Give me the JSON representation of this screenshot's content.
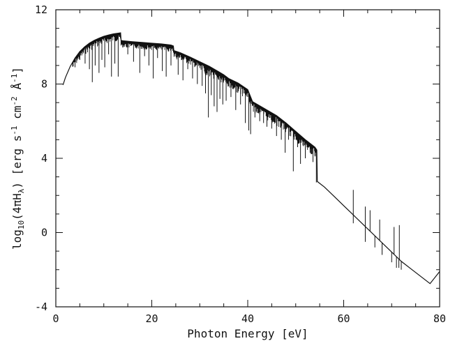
{
  "chart_data": {
    "type": "line",
    "xlabel": "Photon Energy [eV]",
    "ylabel": {
      "prefix": "log",
      "log_subscript": "10",
      "open": "(4πH",
      "h_subscript": "λ",
      "close": ") [erg s",
      "s_exp": "-1",
      "cm_text": " cm",
      "cm_exp": "-2",
      "ang_text": " Å",
      "ang_exp": "-1",
      "end": "]"
    },
    "xlim": [
      0,
      80
    ],
    "ylim": [
      -4,
      12
    ],
    "x_ticks": [
      "0",
      "20",
      "40",
      "60",
      "80"
    ],
    "y_ticks": [
      "-4",
      "0",
      "4",
      "8",
      "12"
    ],
    "color": "#111111",
    "grid": false,
    "continuum": {
      "x": [
        1.5,
        2.0,
        3.0,
        4.0,
        5.0,
        6.0,
        7.0,
        8.0,
        9.0,
        10.0,
        11.0,
        12.0,
        13.0,
        13.5,
        13.6,
        14,
        16,
        18,
        20,
        22,
        24,
        24.5,
        24.6,
        26,
        28,
        30,
        32,
        34,
        35,
        36,
        38,
        40,
        41,
        42,
        44,
        46,
        48,
        50,
        52,
        54,
        54.4,
        54.5,
        56,
        58,
        60,
        62,
        64,
        66,
        68,
        70,
        72,
        74,
        76,
        78,
        80
      ],
      "y": [
        7.95,
        8.35,
        8.95,
        9.4,
        9.75,
        10.0,
        10.2,
        10.35,
        10.47,
        10.57,
        10.64,
        10.7,
        10.74,
        10.76,
        10.35,
        10.33,
        10.28,
        10.24,
        10.2,
        10.16,
        10.1,
        10.05,
        9.8,
        9.68,
        9.45,
        9.2,
        8.95,
        8.65,
        8.5,
        8.3,
        8.05,
        7.7,
        7.05,
        6.9,
        6.6,
        6.3,
        5.9,
        5.45,
        5.0,
        4.6,
        4.45,
        2.75,
        2.45,
        1.95,
        1.45,
        0.95,
        0.45,
        -0.05,
        -0.55,
        -1.05,
        -1.55,
        -1.95,
        -2.35,
        -2.75,
        -2.1
      ]
    },
    "absorption_lines": {
      "x": [
        4.0,
        5.0,
        6.1,
        7.0,
        7.6,
        8.2,
        9.0,
        9.6,
        10.2,
        11.0,
        11.6,
        12.3,
        13.0,
        15.0,
        16.2,
        17.5,
        18.5,
        19.4,
        20.3,
        21.2,
        22.2,
        23.0,
        24.0,
        25.5,
        26.5,
        27.5,
        28.5,
        29.5,
        30.5,
        31.2,
        31.8,
        32.4,
        33.0,
        33.6,
        34.2,
        34.8,
        35.5,
        36.5,
        37.5,
        38.5,
        39.5,
        40.2,
        40.6,
        41.5,
        42.5,
        43.3,
        44.0,
        45.0,
        46.0,
        47.0,
        47.8,
        48.5,
        49.5,
        50.4,
        51.0,
        52.0,
        53.0,
        53.6,
        54.0,
        54.3,
        62.0,
        64.5,
        66.5,
        68.0,
        70.0,
        71.0,
        71.5,
        72.0
      ],
      "y": [
        8.9,
        9.3,
        9.1,
        8.8,
        8.1,
        9.0,
        8.6,
        9.3,
        8.9,
        9.6,
        8.4,
        9.1,
        8.4,
        9.6,
        9.2,
        8.6,
        9.5,
        9.0,
        8.3,
        9.4,
        8.7,
        8.4,
        9.0,
        8.5,
        8.2,
        8.8,
        8.3,
        8.0,
        7.9,
        7.5,
        6.2,
        7.4,
        6.8,
        6.5,
        7.2,
        6.9,
        7.1,
        7.3,
        6.6,
        6.9,
        5.9,
        5.5,
        5.3,
        6.2,
        6.0,
        5.9,
        5.7,
        5.6,
        5.2,
        5.0,
        4.3,
        5.0,
        3.3,
        4.6,
        3.7,
        4.0,
        4.3,
        3.8,
        4.1,
        2.7,
        0.5,
        -0.5,
        -0.8,
        -1.2,
        -1.6,
        -1.9,
        -1.9,
        -2.0
      ]
    },
    "emission_lines": {
      "x": [
        62.0,
        64.5,
        65.5,
        67.5,
        70.5,
        71.6
      ],
      "y": [
        2.3,
        1.4,
        1.2,
        0.7,
        0.3,
        0.4
      ]
    }
  }
}
